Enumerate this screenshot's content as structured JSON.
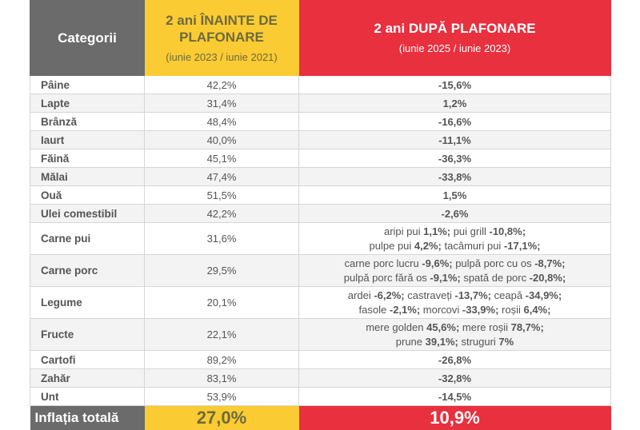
{
  "header": {
    "col1": "Categorii",
    "col2_title": "2 ani ÎNAINTE DE PLAFONARE",
    "col2_sub": "(iunie 2023 / iunie 2021)",
    "col3_title": "2 ani DUPĂ PLAFONARE",
    "col3_sub": "(iunie 2025 / iunie 2023)"
  },
  "colors": {
    "gray": "#6b6b6b",
    "yellow": "#fbcb33",
    "red": "#e8303f"
  },
  "rows": [
    {
      "cat": "Pâine",
      "before": "42,2%",
      "after": "-15,6%"
    },
    {
      "cat": "Lapte",
      "before": "31,4%",
      "after": "1,2%"
    },
    {
      "cat": "Brânză",
      "before": "48,4%",
      "after": "-16,6%"
    },
    {
      "cat": "Iaurt",
      "before": "40,0%",
      "after": "-11,1%"
    },
    {
      "cat": "Făină",
      "before": "45,1%",
      "after": "-36,3%"
    },
    {
      "cat": "Mălai",
      "before": "47,4%",
      "after": "-33,8%"
    },
    {
      "cat": "Ouă",
      "before": "51,5%",
      "after": "1,5%"
    },
    {
      "cat": "Ulei comestibil",
      "before": "42,2%",
      "after": "-2,6%"
    },
    {
      "cat": "Carne pui",
      "before": "31,6%",
      "after_items": [
        [
          {
            "t": "aripi pui ",
            "v": "1,1%;"
          },
          {
            "t": " pui grill ",
            "v": "-10,8%;"
          }
        ],
        [
          {
            "t": "pulpe pui ",
            "v": "4,2%;"
          },
          {
            "t": " tacâmuri pui ",
            "v": "-17,1%;"
          }
        ]
      ]
    },
    {
      "cat": "Carne porc",
      "before": "29,5%",
      "after_items": [
        [
          {
            "t": "carne porc lucru ",
            "v": "-9,6%;"
          },
          {
            "t": " pulpă porc cu os ",
            "v": "-8,7%;"
          }
        ],
        [
          {
            "t": "pulpă porc fără os ",
            "v": "-9,1%;"
          },
          {
            "t": " spată de porc ",
            "v": "-20,8%;"
          }
        ]
      ]
    },
    {
      "cat": "Legume",
      "before": "20,1%",
      "after_items": [
        [
          {
            "t": "ardei ",
            "v": "-6,2%;"
          },
          {
            "t": " castraveți ",
            "v": "-13,7%;"
          },
          {
            "t": " ceapă ",
            "v": "-34,9%;"
          }
        ],
        [
          {
            "t": "fasole ",
            "v": "-2,1%;"
          },
          {
            "t": " morcovi ",
            "v": "-33,9%;"
          },
          {
            "t": " roșii ",
            "v": "6,4%;"
          }
        ]
      ]
    },
    {
      "cat": "Fructe",
      "before": "22,1%",
      "after_items": [
        [
          {
            "t": "mere golden ",
            "v": "45,6%;"
          },
          {
            "t": " mere roșii ",
            "v": "78,7%;"
          }
        ],
        [
          {
            "t": "prune ",
            "v": "39,1%;"
          },
          {
            "t": " struguri ",
            "v": "7%"
          }
        ]
      ]
    },
    {
      "cat": "Cartofi",
      "before": "89,2%",
      "after": "-26,8%"
    },
    {
      "cat": "Zahăr",
      "before": "83,1%",
      "after": "-32,8%"
    },
    {
      "cat": "Unt",
      "before": "53,9%",
      "after": "-14,5%"
    }
  ],
  "total": {
    "label": "Inflația totală",
    "before": "27,0%",
    "after": "10,9%"
  }
}
